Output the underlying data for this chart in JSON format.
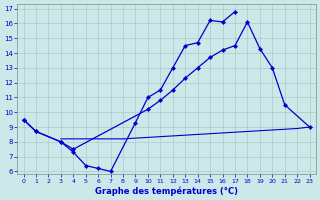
{
  "xlabel": "Graphe des températures (°C)",
  "bg_color": "#cce8e8",
  "line_color": "#0000cc",
  "grid_color": "#aacccc",
  "xmin": 0,
  "xmax": 23,
  "ymin": 6,
  "ymax": 17,
  "curve1_x": [
    0,
    1,
    3,
    4,
    5,
    6,
    7,
    9,
    10,
    11,
    12,
    13,
    14,
    15,
    16,
    17
  ],
  "curve1_y": [
    9.5,
    8.7,
    8.0,
    7.3,
    6.4,
    6.2,
    6.0,
    9.3,
    11.0,
    11.5,
    13.0,
    14.5,
    14.7,
    16.2,
    16.1,
    16.8
  ],
  "curve2_x": [
    0,
    1,
    3,
    4,
    10,
    11,
    12,
    13,
    14,
    15,
    16,
    17,
    18,
    19,
    20,
    21,
    23
  ],
  "curve2_y": [
    9.5,
    8.7,
    8.0,
    7.5,
    10.2,
    10.8,
    11.5,
    12.3,
    13.0,
    13.7,
    14.2,
    14.5,
    16.1,
    14.3,
    13.0,
    10.5,
    9.0
  ],
  "curve3_x": [
    3,
    4,
    5,
    6,
    7,
    8,
    9,
    10,
    11,
    12,
    13,
    14,
    15,
    16,
    17,
    18,
    19,
    20,
    21,
    22,
    23
  ],
  "curve3_y": [
    8.2,
    8.2,
    8.2,
    8.2,
    8.2,
    8.2,
    8.25,
    8.3,
    8.35,
    8.4,
    8.45,
    8.5,
    8.55,
    8.6,
    8.65,
    8.7,
    8.75,
    8.8,
    8.85,
    8.9,
    9.0
  ]
}
